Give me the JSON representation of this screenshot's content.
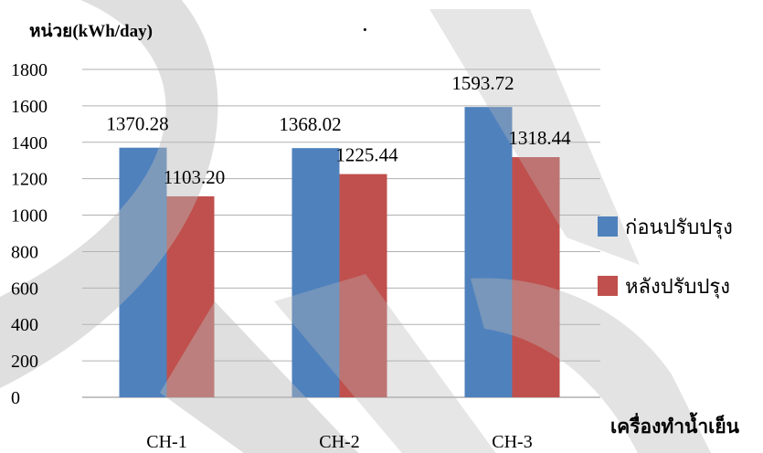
{
  "chart_data": {
    "type": "bar",
    "title": "",
    "unit_label": "หน่วย(kWh/day)",
    "title_mark": ".",
    "xlabel": "เครื่องทำน้ำเย็น",
    "ylabel": "",
    "categories": [
      "CH-1",
      "CH-2",
      "CH-3"
    ],
    "series": [
      {
        "name": "ก่อนปรับปรุง",
        "values": [
          1370.28,
          1368.02,
          1593.72
        ],
        "labels": [
          "1370.28",
          "1368.02",
          "1593.72"
        ],
        "color": "#4F81BD"
      },
      {
        "name": "หลังปรับปรุง",
        "values": [
          1103.2,
          1225.44,
          1318.44
        ],
        "labels": [
          "1103.20",
          "1225.44",
          "1318.44"
        ],
        "color": "#C0504D"
      }
    ],
    "ylim": [
      0,
      1800
    ],
    "yticks": [
      0,
      200,
      400,
      600,
      800,
      1000,
      1200,
      1400,
      1600,
      1800
    ],
    "grid": true,
    "legend_position": "right"
  },
  "watermark_color": "#b8b8b8"
}
